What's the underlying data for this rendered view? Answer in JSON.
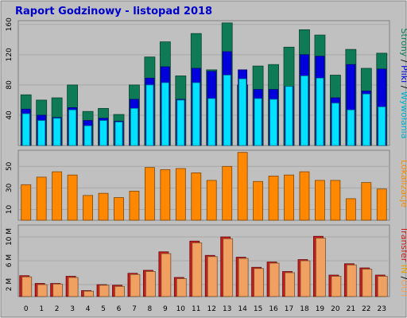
{
  "title": "Raport Godzinowy -  listopad 2018",
  "colors": {
    "background": "#c0c0c0",
    "outer": "#ffffff",
    "strony": "#0f7a56",
    "pliki": "#0000dd",
    "wywolania": "#00e0ff",
    "lokalizacje": "#ff8800",
    "transfer_in": "#cc1a1a",
    "transfer_out": "#f0a060"
  },
  "chart_data": [
    {
      "type": "bar",
      "title": "",
      "categories": [
        "0",
        "1",
        "2",
        "3",
        "4",
        "5",
        "6",
        "7",
        "8",
        "9",
        "10",
        "11",
        "12",
        "13",
        "14",
        "15",
        "16",
        "17",
        "18",
        "19",
        "20",
        "21",
        "22",
        "23"
      ],
      "y_ticks": [
        "40",
        "80",
        "120",
        "160"
      ],
      "ylim": [
        0,
        165
      ],
      "grid": true,
      "side_label": {
        "strony": "Strony",
        "slash1": " / ",
        "pliki": "Pliki",
        "slash2": " / ",
        "wywolania": "Wywołania"
      },
      "series": [
        {
          "name": "Strony",
          "values": [
            67,
            60,
            63,
            80,
            45,
            49,
            41,
            80,
            117,
            137,
            92,
            148,
            100,
            162,
            80,
            105,
            107,
            130,
            153,
            146,
            93,
            127,
            102,
            122
          ]
        },
        {
          "name": "Pliki",
          "values": [
            48,
            40,
            37,
            50,
            33,
            36,
            32,
            61,
            89,
            104,
            61,
            102,
            98,
            124,
            100,
            74,
            74,
            78,
            120,
            118,
            63,
            107,
            72,
            101
          ]
        },
        {
          "name": "Wywołania",
          "values": [
            42,
            33,
            36,
            47,
            26,
            33,
            31,
            49,
            80,
            83,
            60,
            83,
            62,
            93,
            88,
            62,
            61,
            78,
            92,
            89,
            56,
            47,
            68,
            51
          ]
        }
      ]
    },
    {
      "type": "bar",
      "title": "",
      "categories": [
        "0",
        "1",
        "2",
        "3",
        "4",
        "5",
        "6",
        "7",
        "8",
        "9",
        "10",
        "11",
        "12",
        "13",
        "14",
        "15",
        "16",
        "17",
        "18",
        "19",
        "20",
        "21",
        "22",
        "23"
      ],
      "y_ticks": [
        "10",
        "30",
        "50"
      ],
      "ylim": [
        0,
        65
      ],
      "grid": true,
      "side_label": {
        "text": "Lokalizacje"
      },
      "series": [
        {
          "name": "Lokalizacje",
          "values": [
            33,
            40,
            45,
            42,
            23,
            25,
            21,
            27,
            49,
            47,
            48,
            44,
            37,
            50,
            63,
            36,
            41,
            42,
            45,
            37,
            37,
            20,
            35,
            29
          ]
        }
      ]
    },
    {
      "type": "bar",
      "title": "",
      "categories": [
        "0",
        "1",
        "2",
        "3",
        "4",
        "5",
        "6",
        "7",
        "8",
        "9",
        "10",
        "11",
        "12",
        "13",
        "14",
        "15",
        "16",
        "17",
        "18",
        "19",
        "20",
        "21",
        "22",
        "23"
      ],
      "y_ticks": [
        "2 M",
        "6 M",
        "10 M"
      ],
      "ylim": [
        0,
        12
      ],
      "grid": true,
      "side_label": {
        "transfer": "Transfer",
        "in": " IN ",
        "slash": "/",
        "out": "OUT"
      },
      "series": [
        {
          "name": "IN",
          "values": [
            3.5,
            2.2,
            2.2,
            3.4,
            1.0,
            2.0,
            1.9,
            3.9,
            4.4,
            7.5,
            3.2,
            9.3,
            6.9,
            10.0,
            6.6,
            4.9,
            5.8,
            4.2,
            6.2,
            10.1,
            3.6,
            5.5,
            4.8,
            3.6
          ]
        },
        {
          "name": "OUT",
          "values": [
            3.3,
            2.0,
            2.1,
            3.2,
            0.9,
            1.9,
            1.7,
            3.7,
            4.2,
            7.2,
            3.0,
            9.0,
            6.7,
            9.7,
            6.4,
            4.7,
            5.6,
            4.0,
            6.0,
            9.8,
            3.4,
            5.3,
            4.6,
            3.4
          ]
        }
      ]
    }
  ]
}
